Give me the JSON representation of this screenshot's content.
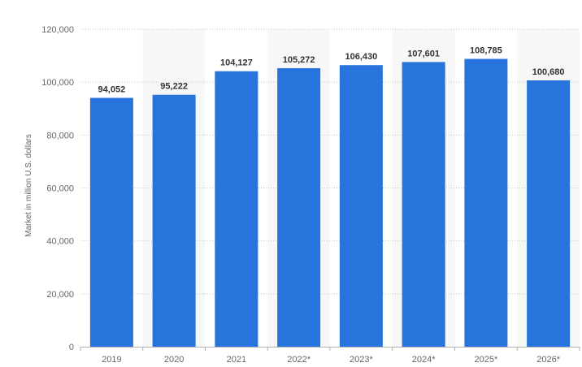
{
  "chart_data": {
    "type": "bar",
    "categories": [
      "2019",
      "2020",
      "2021",
      "2022*",
      "2023*",
      "2024*",
      "2025*",
      "2026*"
    ],
    "values": [
      94052,
      95222,
      104127,
      105272,
      106430,
      107601,
      108785,
      100680
    ],
    "value_labels": [
      "94,052",
      "95,222",
      "104,127",
      "105,272",
      "106,430",
      "107,601",
      "108,785",
      "100,680"
    ],
    "title": "",
    "xlabel": "",
    "ylabel": "Market in million U.S. dollars",
    "ylim": [
      0,
      120000
    ],
    "yticks": [
      0,
      20000,
      40000,
      60000,
      80000,
      100000,
      120000
    ],
    "ytick_labels": [
      "0",
      "20,000",
      "40,000",
      "60,000",
      "80,000",
      "100,000",
      "120,000"
    ],
    "grid": true,
    "legend": "none",
    "bar_color": "#2874dd",
    "shaded_band_color": "#f7f7f7"
  }
}
